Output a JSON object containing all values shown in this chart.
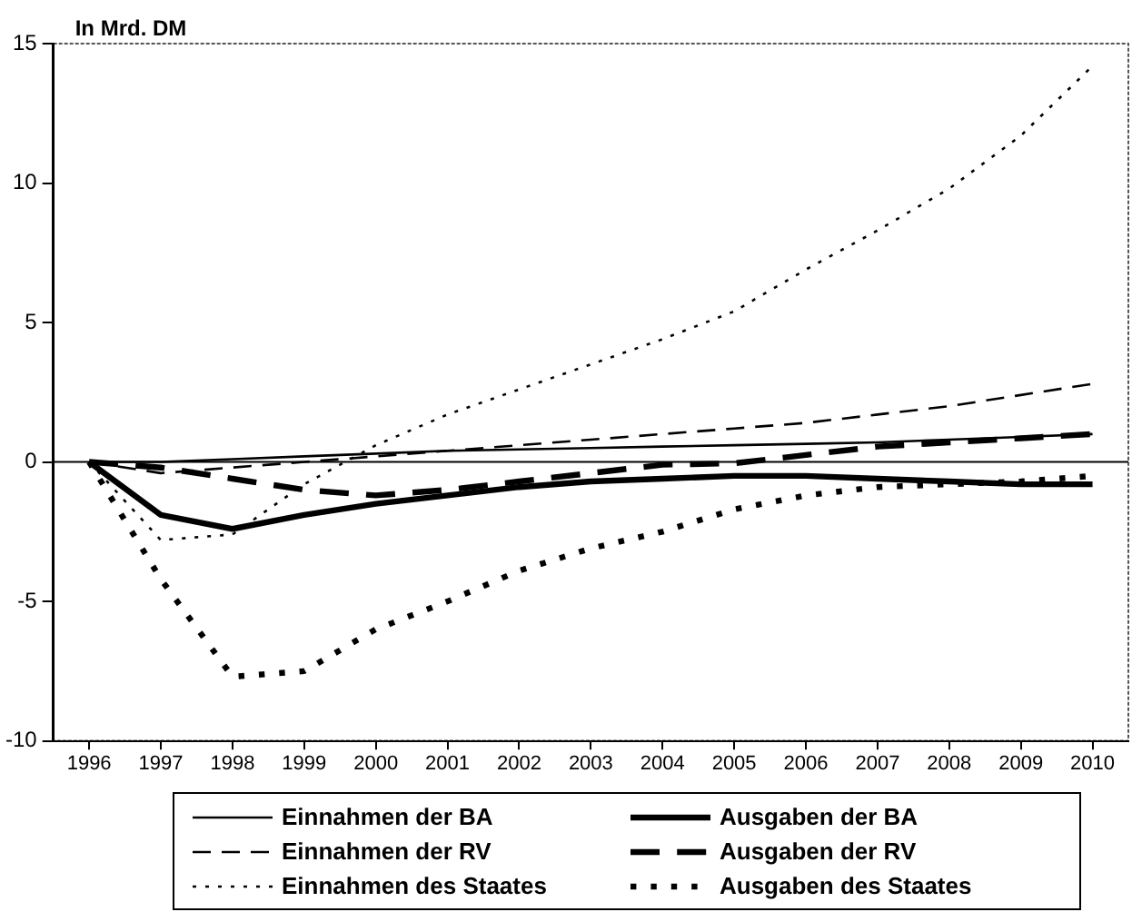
{
  "chart_data": {
    "type": "line",
    "ylabel": "In Mrd. DM",
    "categories": [
      "1996",
      "1997",
      "1998",
      "1999",
      "2000",
      "2001",
      "2002",
      "2003",
      "2004",
      "2005",
      "2006",
      "2007",
      "2008",
      "2009",
      "2010"
    ],
    "ylim": [
      -10,
      15
    ],
    "ref_lines": [
      {
        "axis": "y",
        "value": 0,
        "color": "#000000",
        "line_style": "solid"
      }
    ],
    "yticks": [
      -10,
      -5,
      0,
      5,
      10,
      15
    ],
    "grid": false,
    "legend": "bottom",
    "marker": "none",
    "series": [
      {
        "name": "Einnahmen der BA",
        "color": "#000000",
        "line_style": "solid",
        "values": [
          0,
          0,
          0.1,
          0.2,
          0.3,
          0.4,
          0.45,
          0.5,
          0.55,
          0.6,
          0.65,
          0.7,
          0.8,
          0.9,
          1.0
        ]
      },
      {
        "name": "Ausgaben der BA",
        "color": "#000000",
        "line_style": "solid",
        "values": [
          0,
          -1.9,
          -2.4,
          -1.9,
          -1.5,
          -1.2,
          -0.9,
          -0.7,
          -0.6,
          -0.5,
          -0.5,
          -0.6,
          -0.7,
          -0.8,
          -0.8
        ]
      },
      {
        "name": "Einnahmen der RV",
        "color": "#000000",
        "line_style": "dashed",
        "values": [
          0,
          -0.4,
          -0.2,
          0,
          0.2,
          0.4,
          0.6,
          0.8,
          1.0,
          1.2,
          1.4,
          1.7,
          2.0,
          2.4,
          2.8
        ]
      },
      {
        "name": "Ausgaben der RV",
        "color": "#000000",
        "line_style": "dashed",
        "values": [
          0,
          -0.2,
          -0.6,
          -1.0,
          -1.2,
          -1.0,
          -0.7,
          -0.4,
          -0.1,
          -0.05,
          0.25,
          0.55,
          0.7,
          0.85,
          1.0
        ]
      },
      {
        "name": "Einnahmen des Staates",
        "color": "#000000",
        "line_style": "dotted",
        "values": [
          0,
          -2.8,
          -2.6,
          -0.8,
          0.6,
          1.7,
          2.6,
          3.5,
          4.4,
          5.4,
          6.9,
          8.3,
          9.8,
          11.7,
          14.2
        ]
      },
      {
        "name": "Ausgaben des Staates",
        "color": "#000000",
        "line_style": "dotted",
        "values": [
          0,
          -4.2,
          -7.7,
          -7.5,
          -6.0,
          -5.0,
          -3.9,
          -3.1,
          -2.5,
          -1.7,
          -1.2,
          -0.9,
          -0.8,
          -0.7,
          -0.5
        ]
      }
    ]
  }
}
